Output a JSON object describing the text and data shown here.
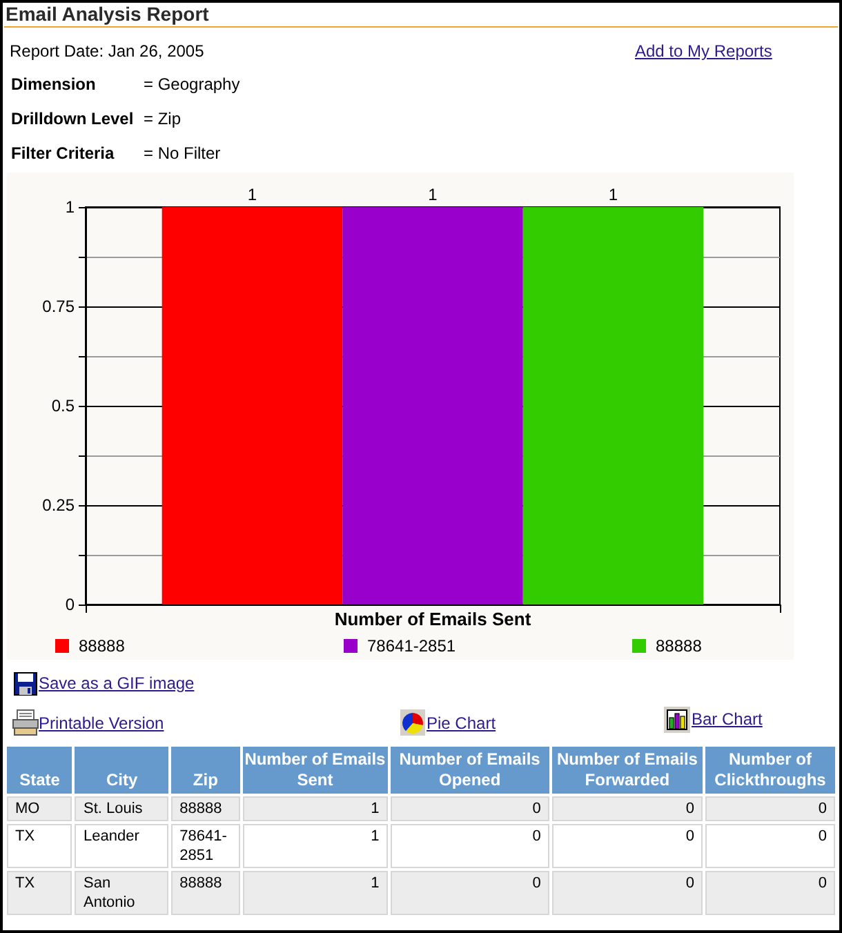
{
  "chart_data": [
    {
      "type": "bar",
      "title": "Email Analysis Report",
      "subtitle": "Report Date: Jan 26, 2005",
      "annotations": [
        "Add to My Reports",
        "Dimension",
        "= Geography",
        "Drilldown Level",
        "= Zip",
        "Filter Criteria",
        "= No Filter",
        "Save as a GIF image",
        "Printable Version",
        "Pie Chart",
        "Bar Chart"
      ],
      "categories": [
        null
      ],
      "xlabel": "Number of Emails Sent",
      "series": [
        {
          "name": "88888",
          "color": "#fe0000",
          "values": [
            1
          ]
        },
        {
          "name": "78641-2851",
          "color": "#9900cc",
          "values": [
            1
          ]
        },
        {
          "name": "88888",
          "color": "#33cc00",
          "values": [
            1
          ]
        }
      ],
      "ylim": [
        0,
        1
      ],
      "yticks": [
        0,
        {
          "value": 0.125,
          "label": null
        },
        0.25,
        {
          "value": 0.375,
          "label": null
        },
        0.5,
        {
          "value": 0.625,
          "label": null
        },
        0.75,
        {
          "value": 0.875,
          "label": null
        },
        1
      ],
      "grid": "y",
      "legend": "bottom",
      "data_labels": true
    },
    {
      "type": "other",
      "categories": [
        "State",
        "City",
        "Zip",
        "Number of Emails Sent",
        "Number of Emails Opened",
        "Number of Emails Forwarded",
        "Number of Clickthroughs"
      ],
      "cells": [
        [
          "MO",
          "St. Louis",
          "88888",
          "1",
          "0",
          "0",
          "0"
        ],
        [
          "TX",
          "Leander",
          "78641-2851",
          "1",
          "0",
          "0",
          "0"
        ],
        [
          "TX",
          "San Antonio",
          "88888",
          "1",
          "0",
          "0",
          "0"
        ]
      ]
    }
  ]
}
